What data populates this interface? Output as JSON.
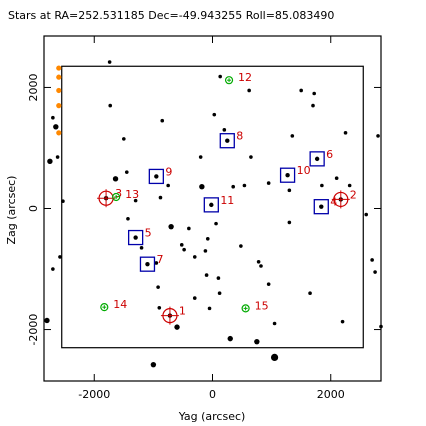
{
  "chart_data": {
    "type": "scatter",
    "title": "Stars at RA=252.531185 Dec=-49.943255 Roll=85.083490",
    "xlabel": "Yag (arcsec)",
    "ylabel": "Zag (arcsec)",
    "xlim": [
      -2850,
      2850
    ],
    "ylim": [
      -2850,
      2850
    ],
    "xticks": [
      -2000,
      0,
      2000
    ],
    "yticks": [
      -2000,
      0,
      2000
    ],
    "grid": false,
    "field_box": [
      -2550,
      2550,
      -2300,
      2350
    ],
    "stars": [
      [
        -2750,
        780,
        2
      ],
      [
        -2700,
        1500,
        1
      ],
      [
        -2700,
        -1000,
        1
      ],
      [
        -2650,
        1350,
        2
      ],
      [
        -2620,
        850,
        1
      ],
      [
        -2580,
        -800,
        1
      ],
      [
        -2530,
        120,
        1
      ],
      [
        -2800,
        -1850,
        2
      ],
      [
        -1740,
        2420,
        1
      ],
      [
        -1730,
        1700,
        1
      ],
      [
        -1640,
        490,
        2
      ],
      [
        -1500,
        1150,
        1
      ],
      [
        -1450,
        600,
        1
      ],
      [
        -1430,
        -170,
        1
      ],
      [
        -1300,
        130,
        1
      ],
      [
        -1200,
        -650,
        1
      ],
      [
        -950,
        -900,
        1
      ],
      [
        -920,
        -1300,
        1
      ],
      [
        -900,
        -1640,
        1
      ],
      [
        -880,
        180,
        1
      ],
      [
        -850,
        1450,
        1
      ],
      [
        -750,
        380,
        1
      ],
      [
        -700,
        -300,
        2
      ],
      [
        -600,
        -1960,
        2
      ],
      [
        -520,
        -600,
        1
      ],
      [
        -480,
        -680,
        1
      ],
      [
        -400,
        -330,
        1
      ],
      [
        -300,
        -800,
        1
      ],
      [
        -300,
        -1480,
        1
      ],
      [
        -200,
        850,
        1
      ],
      [
        -180,
        360,
        2
      ],
      [
        -120,
        -700,
        1
      ],
      [
        -100,
        -1100,
        1
      ],
      [
        -80,
        -500,
        1
      ],
      [
        -50,
        -1650,
        1
      ],
      [
        30,
        1550,
        1
      ],
      [
        60,
        -250,
        1
      ],
      [
        100,
        -1150,
        1
      ],
      [
        120,
        -1400,
        1
      ],
      [
        130,
        2180,
        1
      ],
      [
        200,
        1300,
        1
      ],
      [
        300,
        -2150,
        2
      ],
      [
        350,
        360,
        1
      ],
      [
        480,
        -620,
        1
      ],
      [
        540,
        380,
        1
      ],
      [
        620,
        1950,
        1
      ],
      [
        650,
        850,
        1
      ],
      [
        750,
        -2200,
        2
      ],
      [
        780,
        -880,
        1
      ],
      [
        820,
        -950,
        1
      ],
      [
        950,
        -1250,
        1
      ],
      [
        950,
        420,
        1
      ],
      [
        1050,
        -1900,
        1
      ],
      [
        1050,
        -2460,
        3
      ],
      [
        1300,
        -230,
        1
      ],
      [
        1300,
        300,
        1
      ],
      [
        1350,
        1200,
        1
      ],
      [
        1500,
        1950,
        1
      ],
      [
        1650,
        -1400,
        1
      ],
      [
        1700,
        1700,
        1
      ],
      [
        1720,
        1900,
        1
      ],
      [
        1850,
        380,
        1
      ],
      [
        2100,
        500,
        1
      ],
      [
        2200,
        -1870,
        1
      ],
      [
        2250,
        1250,
        1
      ],
      [
        2320,
        380,
        1
      ],
      [
        2600,
        -100,
        1
      ],
      [
        2700,
        -850,
        1
      ],
      [
        2750,
        -1050,
        1
      ],
      [
        2800,
        1200,
        1
      ],
      [
        2850,
        -1950,
        1
      ],
      [
        -1000,
        -2580,
        2
      ]
    ],
    "guide_stars": [
      {
        "id": "1",
        "x": -720,
        "y": -1770
      },
      {
        "id": "2",
        "x": 2170,
        "y": 150
      },
      {
        "id": "3",
        "x": -1800,
        "y": 170
      }
    ],
    "acq_stars": [
      {
        "id": "4",
        "x": 1840,
        "y": 30
      },
      {
        "id": "5",
        "x": -1300,
        "y": -480
      },
      {
        "id": "6",
        "x": 1770,
        "y": 820
      },
      {
        "id": "7",
        "x": -1100,
        "y": -920
      },
      {
        "id": "8",
        "x": 250,
        "y": 1120
      },
      {
        "id": "9",
        "x": -950,
        "y": 530
      },
      {
        "id": "10",
        "x": 1270,
        "y": 550
      },
      {
        "id": "11",
        "x": -20,
        "y": 60
      }
    ],
    "fid_lights": [
      {
        "id": "12",
        "x": 280,
        "y": 2120
      },
      {
        "id": "13",
        "x": -1630,
        "y": 190
      },
      {
        "id": "14",
        "x": -1830,
        "y": -1630
      },
      {
        "id": "15",
        "x": 560,
        "y": -1650
      }
    ],
    "bad_stars": [
      [
        -2600,
        2320
      ],
      [
        -2600,
        2170
      ],
      [
        -2600,
        1950
      ],
      [
        -2600,
        1700
      ],
      [
        -2600,
        1250
      ]
    ],
    "colors": {
      "star": "#000000",
      "guide": "#cc0000",
      "acq": "#0000aa",
      "fid": "#00aa00",
      "bad": "#ff8800",
      "label": "#cc0000"
    }
  }
}
